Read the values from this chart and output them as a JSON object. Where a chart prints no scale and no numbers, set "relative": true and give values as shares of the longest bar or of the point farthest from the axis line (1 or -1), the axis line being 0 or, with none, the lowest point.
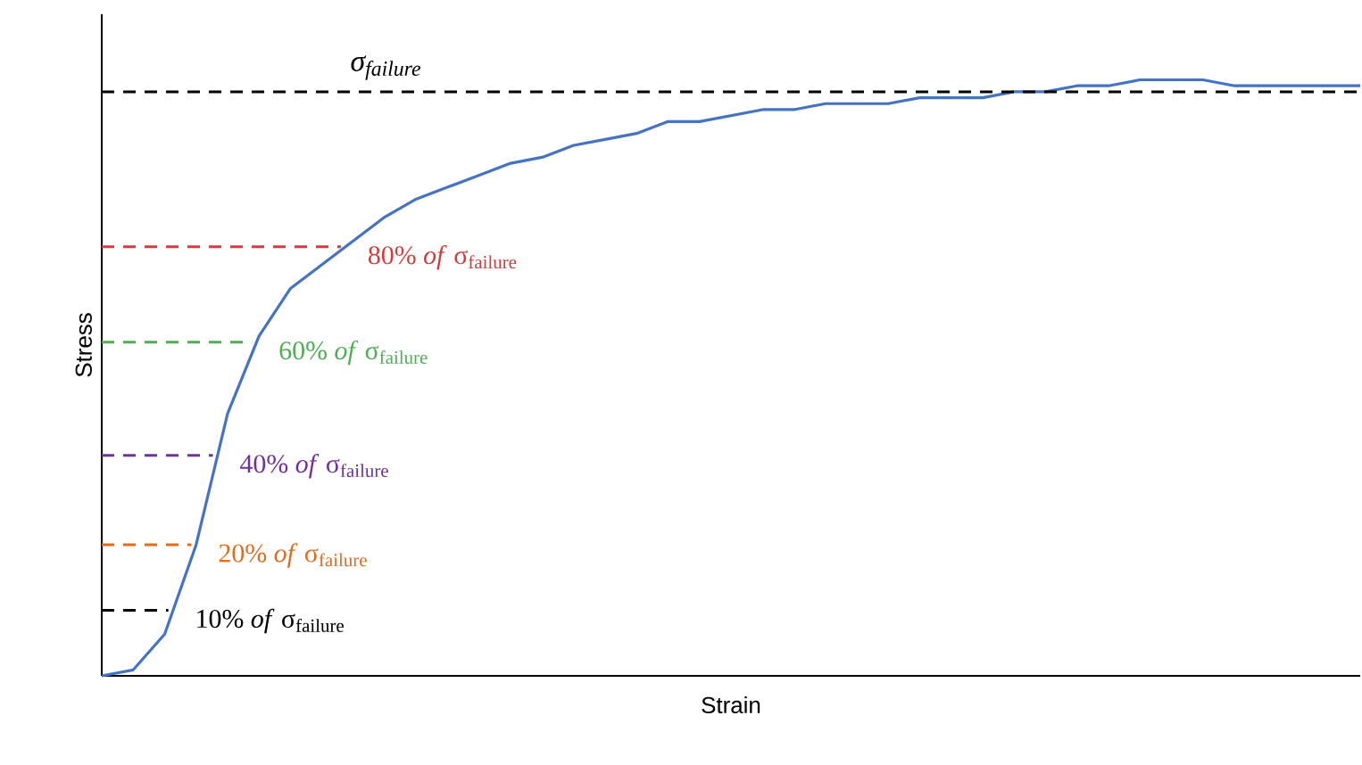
{
  "chart_data": {
    "type": "line",
    "relative": true,
    "xlabel": "Strain",
    "ylabel": "Stress",
    "categories": [
      null,
      null,
      null,
      null,
      null,
      null,
      null,
      null,
      null,
      null,
      null,
      null,
      null,
      null,
      null,
      null,
      null,
      null,
      null,
      null,
      null,
      null,
      null,
      null,
      null,
      null,
      null,
      null,
      null,
      null,
      null,
      null,
      null,
      null,
      null,
      null,
      null,
      null,
      null,
      null,
      null
    ],
    "series": [
      {
        "color": "#4472c4",
        "values": [
          0,
          0.01,
          0.07,
          0.22,
          0.44,
          0.57,
          0.65,
          0.69,
          0.73,
          0.77,
          0.8,
          0.82,
          0.84,
          0.86,
          0.87,
          0.89,
          0.9,
          0.91,
          0.93,
          0.93,
          0.94,
          0.95,
          0.95,
          0.96,
          0.96,
          0.96,
          0.97,
          0.97,
          0.97,
          0.98,
          0.98,
          0.99,
          0.99,
          1.0,
          1.0,
          1.0,
          0.99,
          0.99,
          0.99,
          0.99,
          0.99
        ]
      }
    ],
    "ref_lines": [
      {
        "axis": "y",
        "value": 0.98,
        "label": "σ$_{failure}$",
        "color": "#000000",
        "line_style": "dashed"
      },
      {
        "axis": "y",
        "value": 0.72,
        "label": "80% *of* σ$_{failure}$",
        "color": "#d63a3a",
        "line_style": "dashed"
      },
      {
        "axis": "y",
        "value": 0.56,
        "label": "60% *of* σ$_{failure}$",
        "color": "#4caf50",
        "line_style": "dashed"
      },
      {
        "axis": "y",
        "value": 0.37,
        "label": "40% *of* σ$_{failure}$",
        "color": "#7030a0",
        "line_style": "dashed"
      },
      {
        "axis": "y",
        "value": 0.22,
        "label": "20% *of* σ$_{failure}$",
        "color": "#e06c1f",
        "line_style": "dashed"
      },
      {
        "axis": "y",
        "value": 0.11,
        "label": "10% *of* σ$_{failure}$",
        "color": "#000000",
        "line_style": "dashed"
      }
    ],
    "marker": "none",
    "line_style": "solid"
  }
}
